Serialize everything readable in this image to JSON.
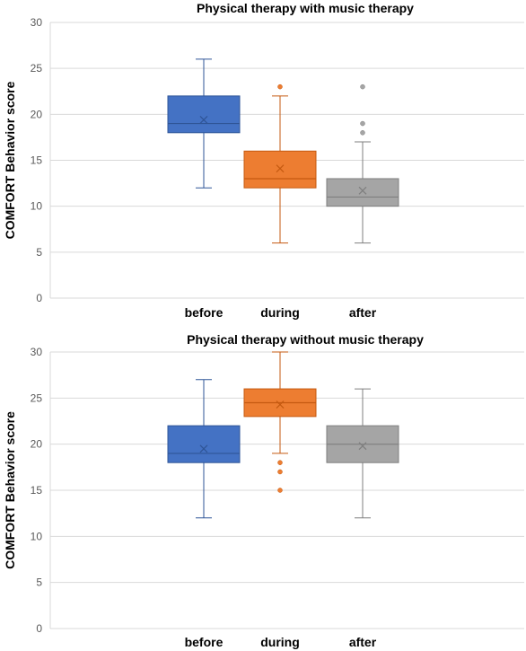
{
  "chart_data": [
    {
      "type": "box",
      "title": "Physical therapy with music therapy",
      "ylabel": "COMFORT Behavior score",
      "xlabel": "",
      "ylim": [
        0,
        30
      ],
      "yticks": [
        0,
        5,
        10,
        15,
        20,
        25,
        30
      ],
      "grid": true,
      "categories": [
        "before",
        "during",
        "after"
      ],
      "series": [
        {
          "color": "#4472c4",
          "stroke": "#2f5597",
          "min": 12,
          "q1": 18,
          "median": 19,
          "q3": 22,
          "max": 26,
          "mean": 19.4,
          "outliers": []
        },
        {
          "color": "#ed7d31",
          "stroke": "#c55a11",
          "min": 6,
          "q1": 12,
          "median": 13,
          "q3": 16,
          "max": 22,
          "mean": 14.1,
          "outliers": [
            23
          ]
        },
        {
          "color": "#a5a5a5",
          "stroke": "#7f7f7f",
          "min": 6,
          "q1": 10,
          "median": 11,
          "q3": 13,
          "max": 17,
          "mean": 11.7,
          "outliers": [
            18,
            19,
            23
          ]
        }
      ]
    },
    {
      "type": "box",
      "title": "Physical therapy without music therapy",
      "ylabel": "COMFORT Behavior score",
      "xlabel": "",
      "ylim": [
        0,
        30
      ],
      "yticks": [
        0,
        5,
        10,
        15,
        20,
        25,
        30
      ],
      "grid": true,
      "categories": [
        "before",
        "during",
        "after"
      ],
      "series": [
        {
          "color": "#4472c4",
          "stroke": "#2f5597",
          "min": 12,
          "q1": 18,
          "median": 19,
          "q3": 22,
          "max": 27,
          "mean": 19.5,
          "outliers": []
        },
        {
          "color": "#ed7d31",
          "stroke": "#c55a11",
          "min": 19,
          "q1": 23,
          "median": 24.5,
          "q3": 26,
          "max": 30,
          "mean": 24.3,
          "outliers": [
            15,
            17,
            18
          ]
        },
        {
          "color": "#a5a5a5",
          "stroke": "#7f7f7f",
          "min": 12,
          "q1": 18,
          "median": 20,
          "q3": 22,
          "max": 26,
          "mean": 19.8,
          "outliers": []
        }
      ]
    }
  ]
}
